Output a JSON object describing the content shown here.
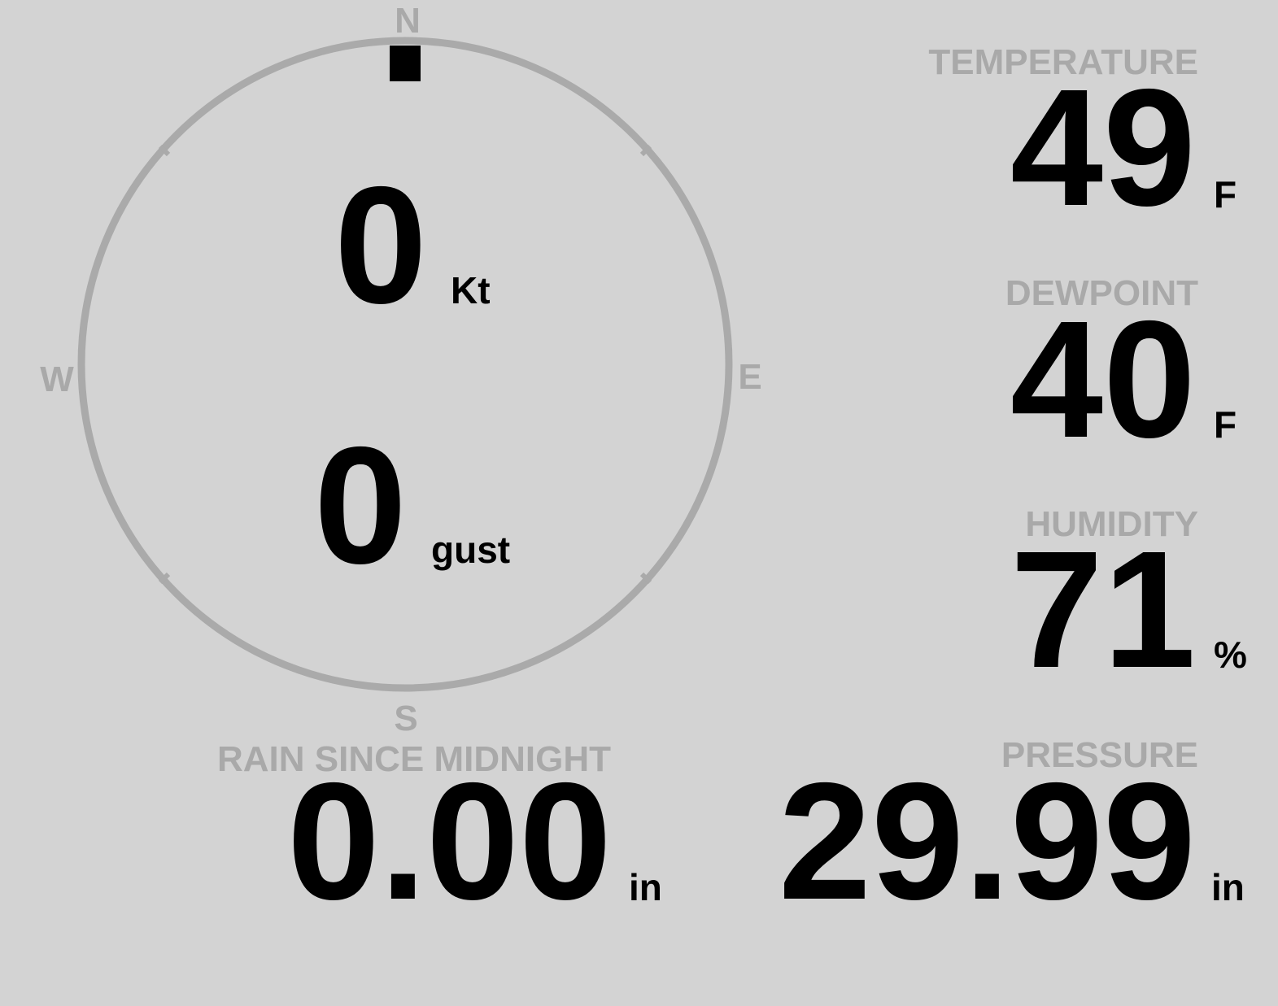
{
  "compass": {
    "north": "N",
    "east": "E",
    "south": "S",
    "west": "W",
    "direction_deg": 0
  },
  "wind": {
    "speed": "0",
    "speed_unit": "Kt",
    "gust": "0",
    "gust_unit": "gust"
  },
  "temperature": {
    "label": "TEMPERATURE",
    "value": "49",
    "unit": "F"
  },
  "dewpoint": {
    "label": "DEWPOINT",
    "value": "40",
    "unit": "F"
  },
  "humidity": {
    "label": "HUMIDITY",
    "value": "71",
    "unit": "%"
  },
  "rain": {
    "label": "RAIN SINCE MIDNIGHT",
    "value": "0.00",
    "unit": "in"
  },
  "pressure": {
    "label": "PRESSURE",
    "value": "29.99",
    "unit": "in"
  }
}
